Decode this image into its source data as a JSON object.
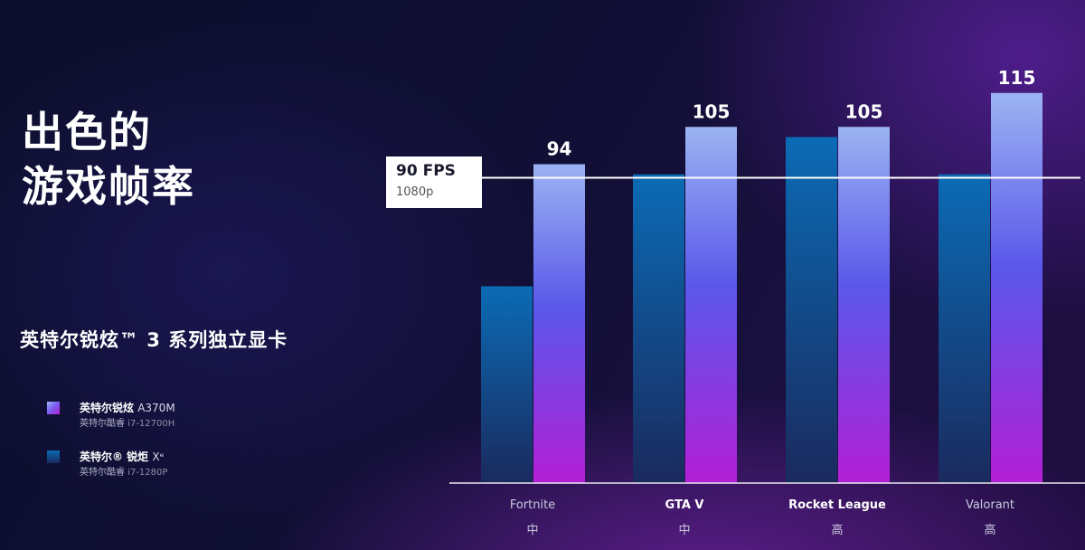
{
  "title": {
    "line1": "出色的",
    "line2": "游戏帧率"
  },
  "subtitle": "英特尔锐炫™ 3 系列独立显卡",
  "legend": [
    {
      "name": "英特尔锐炫",
      "model": "A370M",
      "cpu": "英特尔酷睿",
      "cpu_model": "i7-12700H",
      "color": "#7a5cf0"
    },
    {
      "name": "英特尔® 锐炬",
      "model": "Xᵉ",
      "cpu": "英特尔酷睿",
      "cpu_model": "i7-1280P",
      "color": "#0b6bb5"
    }
  ],
  "reference": {
    "label": "90 FPS",
    "sublabel": "1080p",
    "value": 90
  },
  "chart_data": {
    "type": "bar",
    "categories": [
      "Fortnite",
      "GTA V",
      "Rocket League",
      "Valorant"
    ],
    "settings": [
      "中",
      "中",
      "高",
      "高"
    ],
    "series": [
      {
        "name": "英特尔锐炫 A370M 英特尔酷睿 i7-12700H",
        "values": [
          94,
          105,
          105,
          115
        ],
        "show_labels": true
      },
      {
        "name": "英特尔® 锐炬 Xᵉ 英特尔酷睿 i7-1280P",
        "values": [
          58,
          91,
          102,
          91
        ],
        "show_labels": false
      }
    ],
    "ylim": [
      0,
      120
    ],
    "grid": false,
    "colors": {
      "arc_top": "#9bb3f2",
      "arc_mid": "#5a57ea",
      "arc_bottom": "#b31fd6",
      "xe_top": "#0b6bb5",
      "xe_bottom": "#1a2a5e"
    }
  }
}
